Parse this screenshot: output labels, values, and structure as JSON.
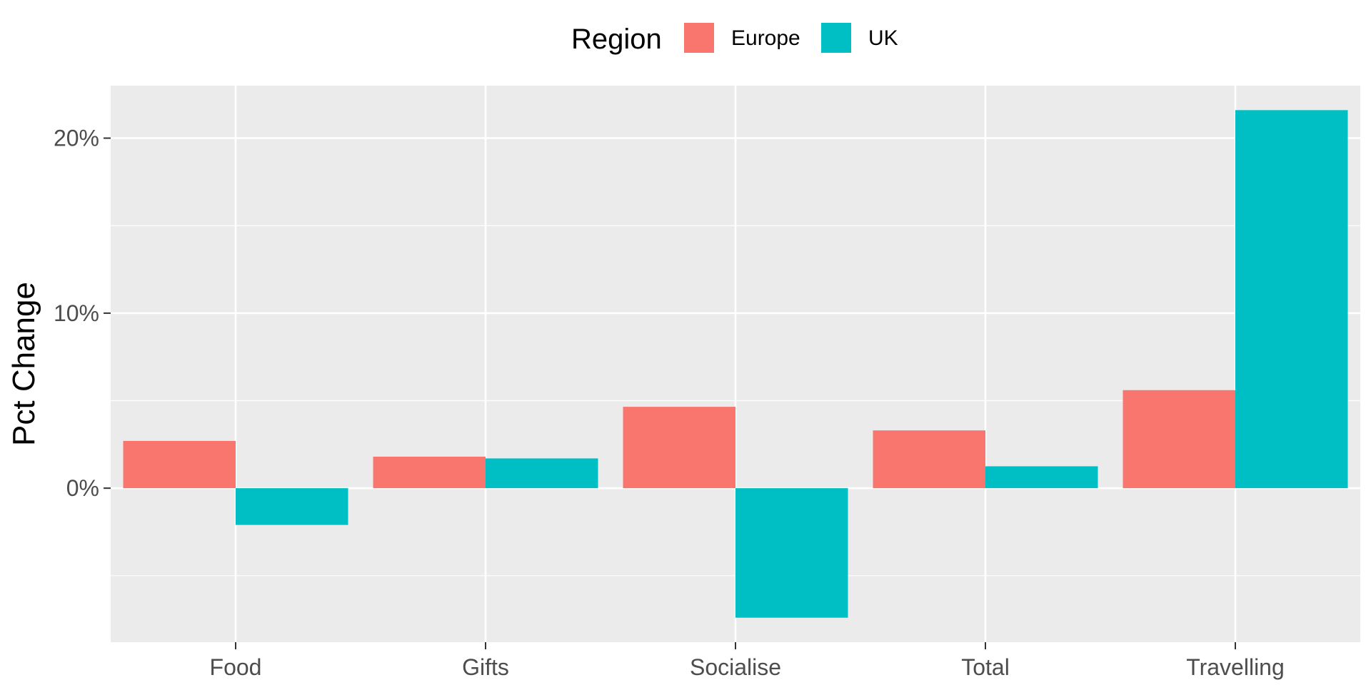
{
  "chart_data": {
    "type": "bar",
    "categories": [
      "Food",
      "Gifts",
      "Socialise",
      "Total",
      "Travelling"
    ],
    "series": [
      {
        "name": "Europe",
        "values": [
          2.7,
          1.8,
          4.65,
          3.3,
          5.6
        ]
      },
      {
        "name": "UK",
        "values": [
          -2.1,
          1.7,
          -7.4,
          1.25,
          21.6
        ]
      }
    ],
    "title": "",
    "xlabel": "",
    "ylabel": "Pct Change",
    "ylim": [
      -8.8,
      23.0
    ],
    "y_ticks": [
      0,
      10,
      20
    ],
    "y_tick_labels": [
      "0%",
      "10%",
      "20%"
    ],
    "y_minor_ticks": [
      -5,
      5,
      15
    ],
    "legend": {
      "title": "Region",
      "position": "top",
      "entries": [
        "Europe",
        "UK"
      ]
    },
    "colors": {
      "Europe": "#F8766D",
      "UK": "#00BFC4",
      "panel": "#EBEBEB",
      "grid": "#FFFFFF"
    },
    "grid": true
  }
}
